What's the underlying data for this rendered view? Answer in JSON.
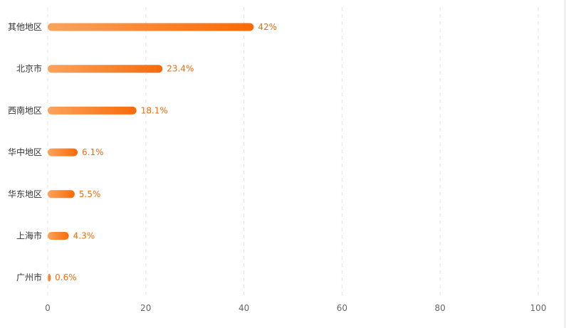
{
  "chart_data": {
    "type": "bar",
    "orientation": "horizontal",
    "categories": [
      "其他地区",
      "北京市",
      "西南地区",
      "华中地区",
      "华东地区",
      "上海市",
      "广州市"
    ],
    "values": [
      42,
      23.4,
      18.1,
      6.1,
      5.5,
      4.3,
      0.6
    ],
    "value_labels": [
      "42%",
      "23.4%",
      "18.1%",
      "6.1%",
      "5.5%",
      "4.3%",
      "0.6%"
    ],
    "xlim": [
      0,
      100
    ],
    "xticks": [
      0,
      20,
      40,
      60,
      80,
      100
    ],
    "xtick_labels": [
      "0",
      "20",
      "40",
      "60",
      "80",
      "100"
    ],
    "grid": "vertical-dashed",
    "colors": {
      "bar_start": "#fba35c",
      "bar_end": "#f96a08",
      "label": "#f26b0a"
    }
  }
}
